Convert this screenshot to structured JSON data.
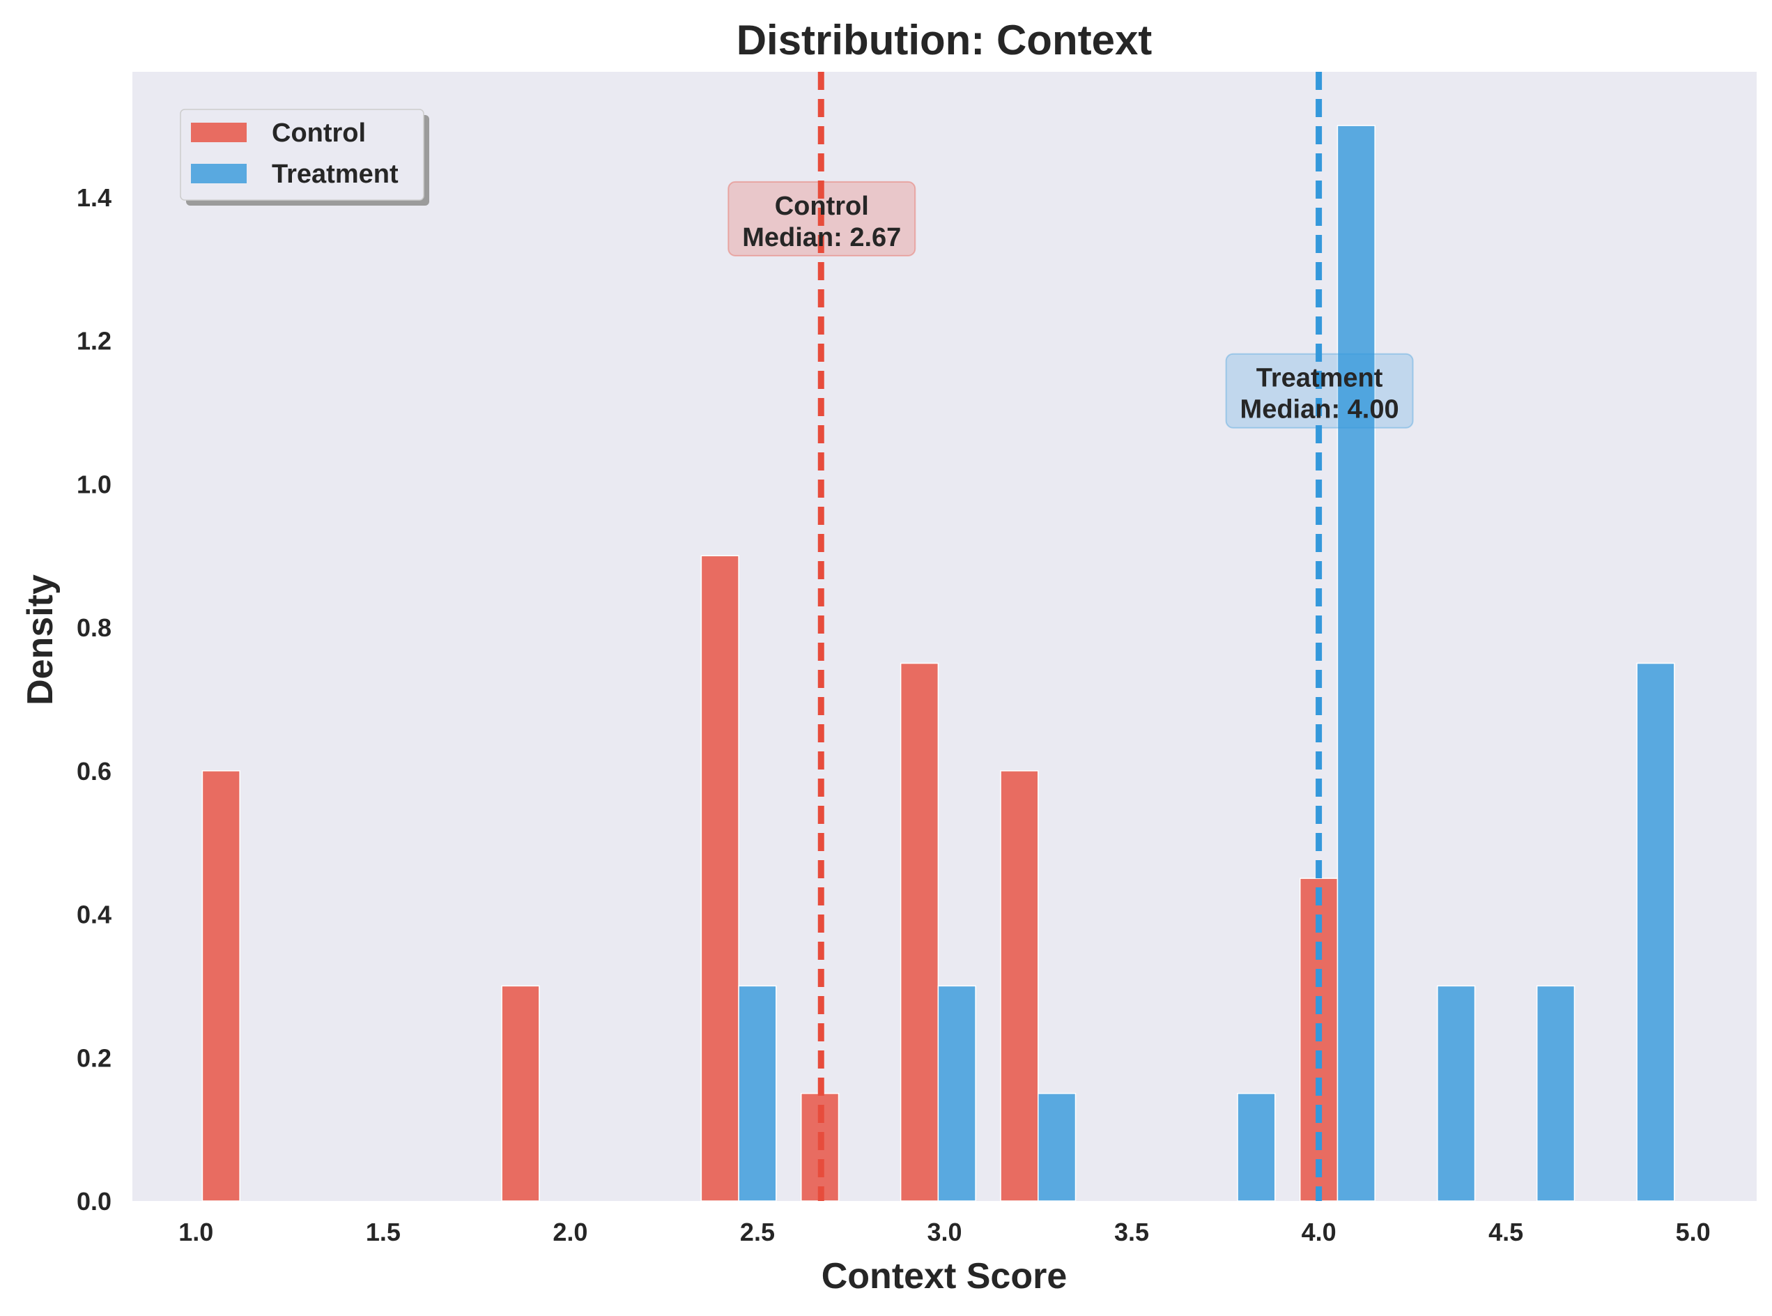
{
  "chart_data": {
    "type": "bar",
    "title": "Distribution: Context",
    "xlabel": "Context Score",
    "ylabel": "Density",
    "xlim": [
      0.83,
      5.17
    ],
    "ylim": [
      0,
      1.575
    ],
    "xticks": [
      "1.0",
      "1.5",
      "2.0",
      "2.5",
      "3.0",
      "3.5",
      "4.0",
      "4.5",
      "5.0"
    ],
    "yticks": [
      "0.0",
      "0.2",
      "0.4",
      "0.6",
      "0.8",
      "1.0",
      "1.2",
      "1.4"
    ],
    "grid": false,
    "legend_position": "top-left",
    "series": [
      {
        "name": "Control",
        "color": "#e74c3c",
        "x": [
          1.067,
          1.867,
          2.4,
          2.667,
          2.933,
          3.2,
          4.0
        ],
        "values": [
          0.6,
          0.3,
          0.9,
          0.15,
          0.75,
          0.6,
          0.45
        ]
      },
      {
        "name": "Treatment",
        "color": "#3498db",
        "x": [
          2.5,
          3.033,
          3.3,
          3.833,
          4.1,
          4.367,
          4.633,
          4.9
        ],
        "values": [
          0.3,
          0.3,
          0.15,
          0.15,
          1.5,
          0.3,
          0.3,
          0.75
        ]
      }
    ],
    "median_lines": [
      {
        "series": "Control",
        "value": 2.67,
        "color": "#e74c3c",
        "label_line1": "Control",
        "label_line2": "Median: 2.67",
        "label_y": 1.37
      },
      {
        "series": "Treatment",
        "value": 4.0,
        "color": "#3498db",
        "label_line1": "Treatment",
        "label_line2": "Median: 4.00",
        "label_y": 1.13
      }
    ]
  }
}
